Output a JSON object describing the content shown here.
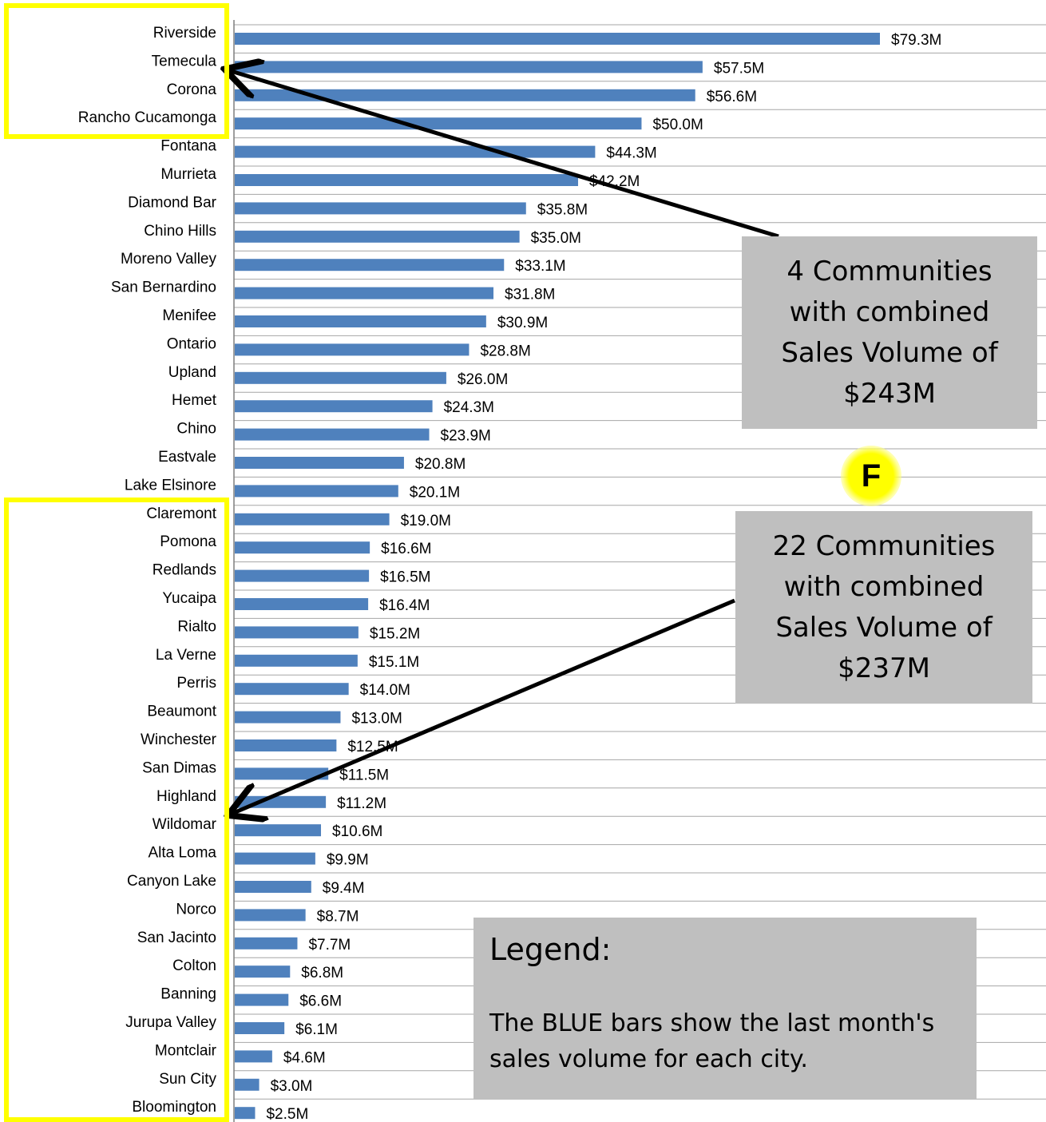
{
  "chart_data": {
    "type": "bar",
    "orientation": "horizontal",
    "categories": [
      "Riverside",
      "Temecula",
      "Corona",
      "Rancho Cucamonga",
      "Fontana",
      "Murrieta",
      "Diamond Bar",
      "Chino Hills",
      "Moreno Valley",
      "San Bernardino",
      "Menifee",
      "Ontario",
      "Upland",
      "Hemet",
      "Chino",
      "Eastvale",
      "Lake Elsinore",
      "Claremont",
      "Pomona",
      "Redlands",
      "Yucaipa",
      "Rialto",
      "La Verne",
      "Perris",
      "Beaumont",
      "Winchester",
      "San Dimas",
      "Highland",
      "Wildomar",
      "Alta Loma",
      "Canyon Lake",
      "Norco",
      "San Jacinto",
      "Colton",
      "Banning",
      "Jurupa Valley",
      "Montclair",
      "Sun City",
      "Bloomington"
    ],
    "values": [
      79.3,
      57.5,
      56.6,
      50.0,
      44.3,
      42.2,
      35.8,
      35.0,
      33.1,
      31.8,
      30.9,
      28.8,
      26.0,
      24.3,
      23.9,
      20.8,
      20.1,
      19.0,
      16.6,
      16.5,
      16.4,
      15.2,
      15.1,
      14.0,
      13.0,
      12.5,
      11.5,
      11.2,
      10.6,
      9.9,
      9.4,
      8.7,
      7.7,
      6.8,
      6.6,
      6.1,
      4.6,
      3.0,
      2.5
    ],
    "value_labels": [
      "$79.3M",
      "$57.5M",
      "$56.6M",
      "$50.0M",
      "$44.3M",
      "$42.2M",
      "$35.8M",
      "$35.0M",
      "$33.1M",
      "$31.8M",
      "$30.9M",
      "$28.8M",
      "$26.0M",
      "$24.3M",
      "$23.9M",
      "$20.8M",
      "$20.1M",
      "$19.0M",
      "$16.6M",
      "$16.5M",
      "$16.4M",
      "$15.2M",
      "$15.1M",
      "$14.0M",
      "$13.0M",
      "$12.5M",
      "$11.5M",
      "$11.2M",
      "$10.6M",
      "$9.9M",
      "$9.4M",
      "$8.7M",
      "$7.7M",
      "$6.8M",
      "$6.6M",
      "$6.1M",
      "$4.6M",
      "$3.0M",
      "$2.5M"
    ],
    "unit": "$M",
    "xlim": [
      0,
      100
    ],
    "grid": true,
    "bar_color": "#4f81bd"
  },
  "callouts": {
    "top": {
      "lines": [
        "4 Communities",
        "with combined",
        "Sales Volume of",
        "$243M"
      ]
    },
    "bottom": {
      "lines": [
        "22 Communities",
        "with combined",
        "Sales Volume of",
        "$237M"
      ]
    }
  },
  "badge": {
    "label": "F",
    "color": "#ffff00"
  },
  "legend": {
    "title": "Legend:",
    "text": "The BLUE bars show the last month's sales volume for each city."
  },
  "colors": {
    "highlight": "#ffff00",
    "callout_bg": "#bfbfbf",
    "arrow": "#000000"
  }
}
